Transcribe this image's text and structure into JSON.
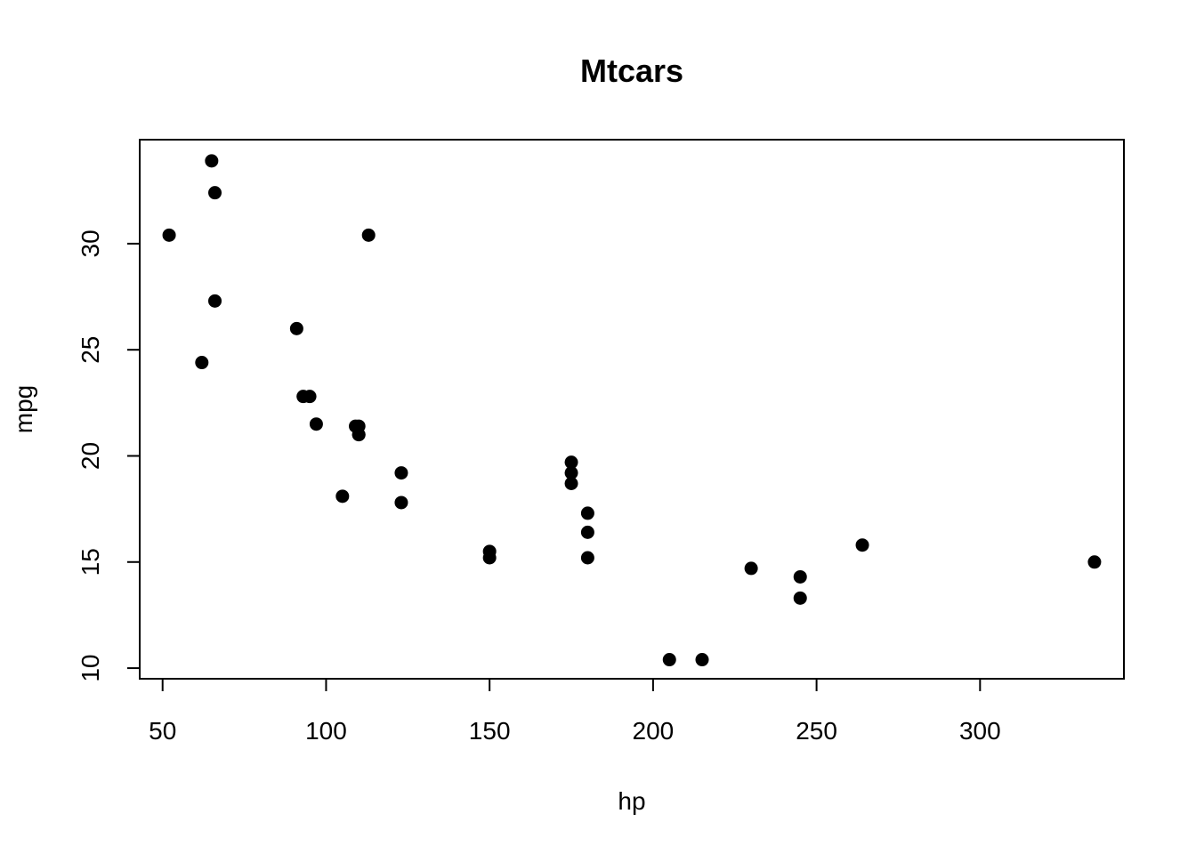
{
  "chart_data": {
    "type": "scatter",
    "title": "Mtcars",
    "xlabel": "hp",
    "ylabel": "mpg",
    "xlim": [
      43,
      344
    ],
    "ylim": [
      9.5,
      34.9
    ],
    "xticks": [
      50,
      100,
      150,
      200,
      250,
      300
    ],
    "yticks": [
      10,
      15,
      20,
      25,
      30
    ],
    "grid": false,
    "points": [
      {
        "x": 110,
        "y": 21.0
      },
      {
        "x": 110,
        "y": 21.0
      },
      {
        "x": 93,
        "y": 22.8
      },
      {
        "x": 110,
        "y": 21.4
      },
      {
        "x": 175,
        "y": 18.7
      },
      {
        "x": 105,
        "y": 18.1
      },
      {
        "x": 245,
        "y": 14.3
      },
      {
        "x": 62,
        "y": 24.4
      },
      {
        "x": 95,
        "y": 22.8
      },
      {
        "x": 123,
        "y": 19.2
      },
      {
        "x": 123,
        "y": 17.8
      },
      {
        "x": 180,
        "y": 16.4
      },
      {
        "x": 180,
        "y": 17.3
      },
      {
        "x": 180,
        "y": 15.2
      },
      {
        "x": 205,
        "y": 10.4
      },
      {
        "x": 215,
        "y": 10.4
      },
      {
        "x": 230,
        "y": 14.7
      },
      {
        "x": 66,
        "y": 32.4
      },
      {
        "x": 52,
        "y": 30.4
      },
      {
        "x": 65,
        "y": 33.9
      },
      {
        "x": 97,
        "y": 21.5
      },
      {
        "x": 150,
        "y": 15.5
      },
      {
        "x": 150,
        "y": 15.2
      },
      {
        "x": 245,
        "y": 13.3
      },
      {
        "x": 175,
        "y": 19.2
      },
      {
        "x": 66,
        "y": 27.3
      },
      {
        "x": 91,
        "y": 26.0
      },
      {
        "x": 113,
        "y": 30.4
      },
      {
        "x": 264,
        "y": 15.8
      },
      {
        "x": 175,
        "y": 19.7
      },
      {
        "x": 335,
        "y": 15.0
      },
      {
        "x": 109,
        "y": 21.4
      }
    ]
  }
}
